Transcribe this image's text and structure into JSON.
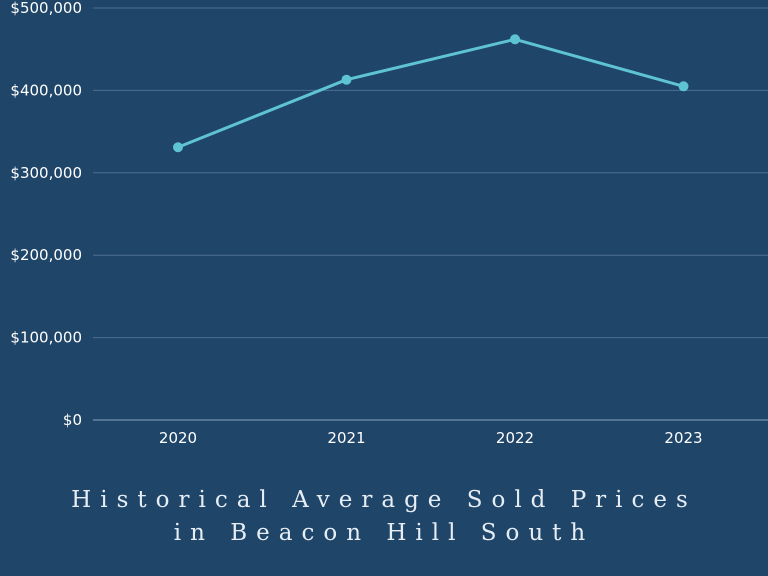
{
  "colors": {
    "background": "#1f4569",
    "line": "#5ec3d3",
    "grid": "#4d6f91",
    "text": "#ffffff"
  },
  "chart_data": {
    "type": "line",
    "categories": [
      "2020",
      "2021",
      "2022",
      "2023"
    ],
    "series": [
      {
        "values": [
          331000,
          413000,
          462000,
          405000
        ]
      }
    ],
    "y_ticks": [
      "$0",
      "$100,000",
      "$200,000",
      "$300,000",
      "$400,000",
      "$500,000"
    ],
    "y_tick_values": [
      0,
      100000,
      200000,
      300000,
      400000,
      500000
    ],
    "ylim": [
      0,
      500000
    ],
    "grid": true,
    "title_lines": [
      "Historical Average Sold Prices",
      "in Beacon Hill South"
    ]
  }
}
